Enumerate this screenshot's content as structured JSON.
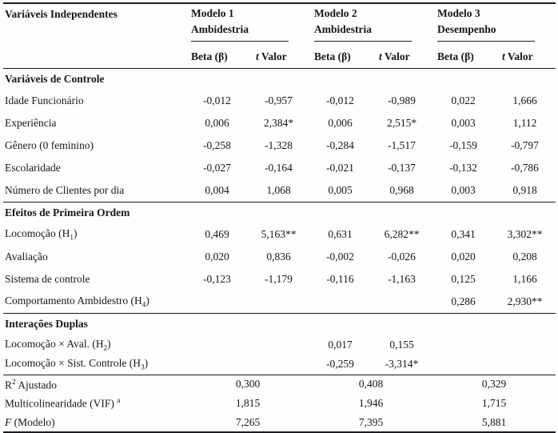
{
  "header": {
    "title": "Variáveis Independentes",
    "models": [
      {
        "name": "Modelo 1",
        "outcome": "Ambidestria"
      },
      {
        "name": "Modelo 2",
        "outcome": "Ambidestria"
      },
      {
        "name": "Modelo 3",
        "outcome": "Desempenho"
      }
    ],
    "beta": "Beta (β)",
    "t_italic": "t",
    "t_rest": " Valor"
  },
  "sections": [
    {
      "title": "Variáveis de Controle",
      "rows": [
        {
          "label": [
            [
              "Idade Funcionário",
              ""
            ]
          ],
          "values": [
            "-0,012",
            "-0,957",
            "-0,012",
            "-0,989",
            "0,022",
            "1,666"
          ]
        },
        {
          "label": [
            [
              "Experiência",
              ""
            ]
          ],
          "values": [
            "0,006",
            "2,384*",
            "0,006",
            "2,515*",
            "0,003",
            "1,112"
          ]
        },
        {
          "label": [
            [
              "Gênero (0 feminino)",
              ""
            ]
          ],
          "values": [
            "-0,258",
            "-1,328",
            "-0,284",
            "-1,517",
            "-0,159",
            "-0,797"
          ]
        },
        {
          "label": [
            [
              "Escolaridade",
              ""
            ]
          ],
          "values": [
            "-0,027",
            "-0,164",
            "-0,021",
            "-0,137",
            "-0,132",
            "-0,786"
          ]
        },
        {
          "label": [
            [
              "Número de Clientes por dia",
              ""
            ]
          ],
          "values": [
            "0,004",
            "1,068",
            "0,005",
            "0,968",
            "0,003",
            "0,918"
          ]
        }
      ]
    },
    {
      "title": "Efeitos de Primeira Ordem",
      "rows": [
        {
          "label": [
            [
              "Locomoção (H",
              ""
            ],
            [
              "1",
              "sub"
            ],
            [
              ")",
              ""
            ]
          ],
          "values": [
            "0,469",
            "5,163**",
            "0,631",
            "6,282**",
            "0,341",
            "3,302**"
          ]
        },
        {
          "label": [
            [
              "Avaliação",
              ""
            ]
          ],
          "values": [
            "0,020",
            "0,836",
            "-0,002",
            "-0,026",
            "0,020",
            "0,208"
          ]
        },
        {
          "label": [
            [
              "Sistema de controle",
              ""
            ]
          ],
          "values": [
            "-0,123",
            "-1,179",
            "-0,116",
            "-1,163",
            "0,125",
            "1,166"
          ]
        },
        {
          "label": [
            [
              "Comportamento Ambidestro (H",
              ""
            ],
            [
              "4",
              "sub"
            ],
            [
              ")",
              ""
            ]
          ],
          "values": [
            "",
            "",
            "",
            "",
            "0,286",
            "2,930**"
          ]
        }
      ]
    },
    {
      "title": "Interações Duplas",
      "rows": [
        {
          "label": [
            [
              "Locomoção × Aval. (H",
              ""
            ],
            [
              "2",
              "sub"
            ],
            [
              ")",
              ""
            ]
          ],
          "values": [
            "",
            "",
            "0,017",
            "0,155",
            "",
            ""
          ]
        },
        {
          "label": [
            [
              "Locomoção × Sist. Controle (H",
              ""
            ],
            [
              "3",
              "sub"
            ],
            [
              ")",
              ""
            ]
          ],
          "values": [
            "",
            "",
            "-0,259",
            "-3,314*",
            "",
            ""
          ]
        }
      ]
    }
  ],
  "summary": [
    {
      "label": [
        [
          "R",
          ""
        ],
        [
          "2",
          "sup"
        ],
        [
          " Ajustado",
          ""
        ]
      ],
      "values": [
        "0,300",
        "0,408",
        "0,329"
      ]
    },
    {
      "label": [
        [
          "Multicolinearidade (VIF) ",
          ""
        ],
        [
          "a",
          "sup"
        ]
      ],
      "values": [
        "1,815",
        "1,946",
        "1,715"
      ]
    },
    {
      "label": [
        [
          "F",
          "italic"
        ],
        [
          " (Modelo)",
          ""
        ]
      ],
      "values": [
        "7,265",
        "7,395",
        "5,881"
      ]
    }
  ]
}
